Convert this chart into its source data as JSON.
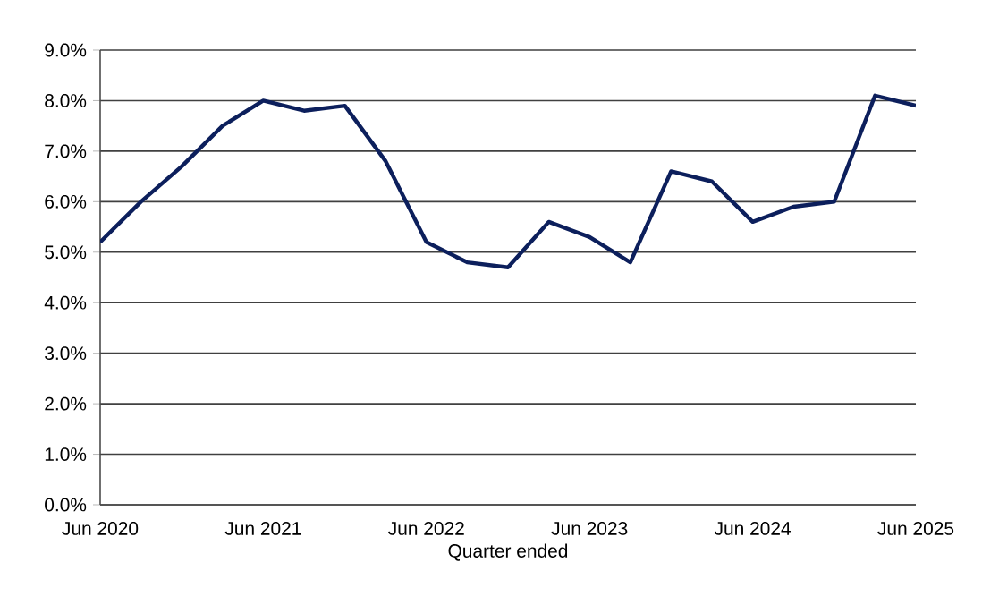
{
  "chart_data": {
    "type": "line",
    "xlabel": "Quarter ended",
    "x": [
      "2020-06",
      "2020-09",
      "2020-12",
      "2021-03",
      "2021-06",
      "2021-09",
      "2021-12",
      "2022-03",
      "2022-06",
      "2022-09",
      "2022-12",
      "2023-03",
      "2023-06",
      "2023-09",
      "2023-12",
      "2024-03",
      "2024-06",
      "2024-09",
      "2024-12",
      "2025-03",
      "2025-06"
    ],
    "series": [
      {
        "color": "#0c1f5c",
        "values": [
          5.2,
          6.0,
          6.7,
          7.5,
          8.0,
          7.8,
          7.9,
          6.8,
          5.2,
          4.8,
          4.7,
          5.6,
          5.3,
          4.8,
          6.6,
          6.4,
          5.6,
          5.9,
          6.0,
          8.1,
          7.9
        ]
      }
    ],
    "xlim": [
      "2020-06",
      "2025-06"
    ],
    "xticks": [
      {
        "value": "2020-06",
        "label": "Jun 2020"
      },
      {
        "value": "2021-06",
        "label": "Jun 2021"
      },
      {
        "value": "2022-06",
        "label": "Jun 2022"
      },
      {
        "value": "2023-06",
        "label": "Jun 2023"
      },
      {
        "value": "2024-06",
        "label": "Jun 2024"
      },
      {
        "value": "2025-06",
        "label": "Jun 2025"
      }
    ],
    "ylim": [
      0,
      9
    ],
    "yticks": [
      {
        "value": 0,
        "label": "0.0%"
      },
      {
        "value": 1,
        "label": "1.0%"
      },
      {
        "value": 2,
        "label": "2.0%"
      },
      {
        "value": 3,
        "label": "3.0%"
      },
      {
        "value": 4,
        "label": "4.0%"
      },
      {
        "value": 5,
        "label": "5.0%"
      },
      {
        "value": 6,
        "label": "6.0%"
      },
      {
        "value": 7,
        "label": "7.0%"
      },
      {
        "value": 8,
        "label": "8.0%"
      },
      {
        "value": 9,
        "label": "9.0%"
      }
    ],
    "grid": "y",
    "marker": "none",
    "line_style": "solid"
  }
}
